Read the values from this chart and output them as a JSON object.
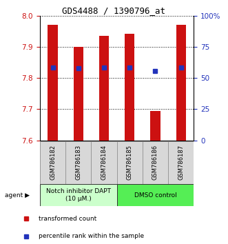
{
  "title": "GDS4488 / 1390796_at",
  "samples": [
    "GSM786182",
    "GSM786183",
    "GSM786184",
    "GSM786185",
    "GSM786186",
    "GSM786187"
  ],
  "bar_bottoms": [
    7.6,
    7.6,
    7.6,
    7.6,
    7.6,
    7.6
  ],
  "bar_tops": [
    7.972,
    7.9,
    7.935,
    7.942,
    7.695,
    7.972
  ],
  "blue_y": [
    7.833,
    7.831,
    7.833,
    7.833,
    7.822,
    7.833
  ],
  "ylim_left": [
    7.6,
    8.0
  ],
  "ylim_right": [
    0,
    100
  ],
  "yticks_left": [
    7.6,
    7.7,
    7.8,
    7.9,
    8.0
  ],
  "yticks_right_vals": [
    0,
    25,
    50,
    75,
    100
  ],
  "yticks_right_labels": [
    "0",
    "25",
    "50",
    "75",
    "100%"
  ],
  "bar_color": "#cc1111",
  "blue_color": "#2233bb",
  "agent_label_1": "Notch inhibitor DAPT\n(10 μM.)",
  "agent_label_2": "DMSO control",
  "agent_color_1": "#ccffcc",
  "agent_color_2": "#55ee55",
  "bar_width": 0.38,
  "title_fontsize": 9,
  "tick_fontsize": 7.5,
  "sample_fontsize": 6.0,
  "agent_fontsize": 6.5,
  "legend_fontsize": 6.5
}
